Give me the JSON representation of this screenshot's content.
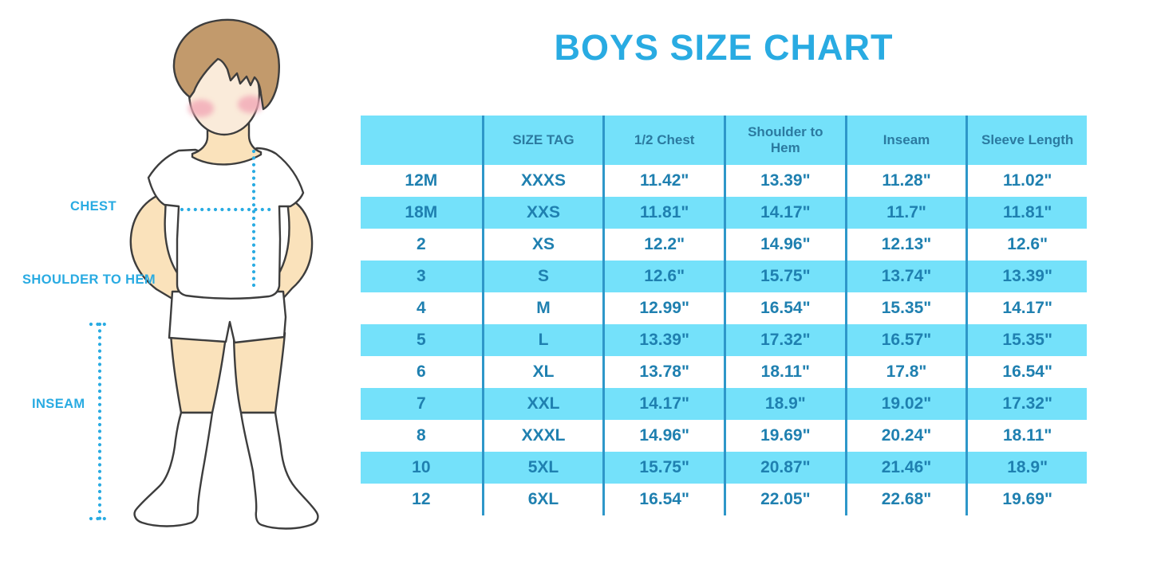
{
  "title": "BOYS SIZE CHART",
  "figure": {
    "chest_label": "CHEST",
    "shoulder_to_hem_label": "SHOULDER TO HEM",
    "inseam_label": "INSEAM"
  },
  "chart_data": {
    "type": "table",
    "title": "BOYS SIZE CHART",
    "columns": [
      "",
      "SIZE TAG",
      "1/2 Chest",
      "Shoulder to Hem",
      "Inseam",
      "Sleeve Length"
    ],
    "rows": [
      [
        "12M",
        "XXXS",
        "11.42\"",
        "13.39\"",
        "11.28\"",
        "11.02\""
      ],
      [
        "18M",
        "XXS",
        "11.81\"",
        "14.17\"",
        "11.7\"",
        "11.81\""
      ],
      [
        "2",
        "XS",
        "12.2\"",
        "14.96\"",
        "12.13\"",
        "12.6\""
      ],
      [
        "3",
        "S",
        "12.6\"",
        "15.75\"",
        "13.74\"",
        "13.39\""
      ],
      [
        "4",
        "M",
        "12.99\"",
        "16.54\"",
        "15.35\"",
        "14.17\""
      ],
      [
        "5",
        "L",
        "13.39\"",
        "17.32\"",
        "16.57\"",
        "15.35\""
      ],
      [
        "6",
        "XL",
        "13.78\"",
        "18.11\"",
        "17.8\"",
        "16.54\""
      ],
      [
        "7",
        "XXL",
        "14.17\"",
        "18.9\"",
        "19.02\"",
        "17.32\""
      ],
      [
        "8",
        "XXXL",
        "14.96\"",
        "19.69\"",
        "20.24\"",
        "18.11\""
      ],
      [
        "10",
        "5XL",
        "15.75\"",
        "20.87\"",
        "21.46\"",
        "18.9\""
      ],
      [
        "12",
        "6XL",
        "16.54\"",
        "22.05\"",
        "22.68\"",
        "19.69\""
      ]
    ],
    "row_striping": "white and light blue alternating, header light blue",
    "units": "inches"
  },
  "colors": {
    "accent_blue": "#29ABE2",
    "table_fill_blue": "#74E1FA",
    "divider_blue": "#2E97C9",
    "cell_text_blue": "#1F80B0",
    "header_text_blue": "#2B7AA0",
    "row_white": "#FFFFFF",
    "skin": "#FAE2BB",
    "face_skin": "#FAEBDA",
    "hair_brown": "#C29A6C",
    "blush_pink": "#F2A8B6",
    "outline_gray": "#3D3D3D"
  }
}
